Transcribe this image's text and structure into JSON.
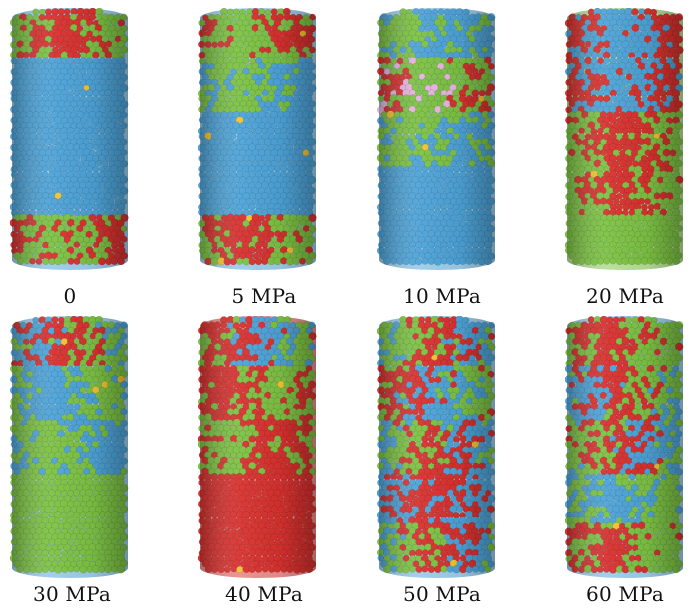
{
  "panels": [
    {
      "id": "p1",
      "label": "0",
      "regions": [
        [
          "green",
          "red"
        ],
        [
          "blue"
        ],
        [
          "blue"
        ],
        [
          "blue"
        ],
        [
          "red",
          "green"
        ]
      ]
    },
    {
      "id": "p2",
      "label": "5 MPa",
      "regions": [
        [
          "red",
          "green"
        ],
        [
          "blue",
          "green"
        ],
        [
          "blue"
        ],
        [
          "blue"
        ],
        [
          "green",
          "red"
        ]
      ]
    },
    {
      "id": "p3",
      "label": "10 MPa",
      "regions": [
        [
          "blue",
          "green"
        ],
        [
          "green",
          "red",
          "pink"
        ],
        [
          "blue",
          "green"
        ],
        [
          "blue"
        ],
        [
          "blue"
        ]
      ]
    },
    {
      "id": "p4",
      "label": "20 MPa",
      "regions": [
        [
          "red",
          "blue"
        ],
        [
          "red",
          "blue"
        ],
        [
          "green",
          "red"
        ],
        [
          "green",
          "red"
        ],
        [
          "green"
        ]
      ]
    },
    {
      "id": "p5",
      "label": "30 MPa",
      "regions": [
        [
          "green",
          "blue",
          "red"
        ],
        [
          "green",
          "blue"
        ],
        [
          "blue",
          "green"
        ],
        [
          "green"
        ],
        [
          "green"
        ]
      ]
    },
    {
      "id": "p6",
      "label": "40 MPa",
      "regions": [
        [
          "blue",
          "green",
          "red"
        ],
        [
          "green",
          "red"
        ],
        [
          "red",
          "green"
        ],
        [
          "red"
        ],
        [
          "red"
        ]
      ]
    },
    {
      "id": "p7",
      "label": "50 MPa",
      "regions": [
        [
          "blue",
          "green",
          "red"
        ],
        [
          "green",
          "red",
          "blue"
        ],
        [
          "blue",
          "green",
          "red"
        ],
        [
          "blue",
          "red"
        ],
        [
          "blue",
          "green",
          "red"
        ]
      ]
    },
    {
      "id": "p8",
      "label": "60 MPa",
      "regions": [
        [
          "green",
          "red"
        ],
        [
          "green",
          "blue",
          "red"
        ],
        [
          "blue",
          "green",
          "red"
        ],
        [
          "green",
          "blue"
        ],
        [
          "green",
          "red"
        ]
      ]
    }
  ],
  "colors": {
    "blue": "#4da3d8",
    "green": "#7cc243",
    "red": "#d8312e",
    "pink": "#e8b3df",
    "yellow": "#f2c230"
  }
}
